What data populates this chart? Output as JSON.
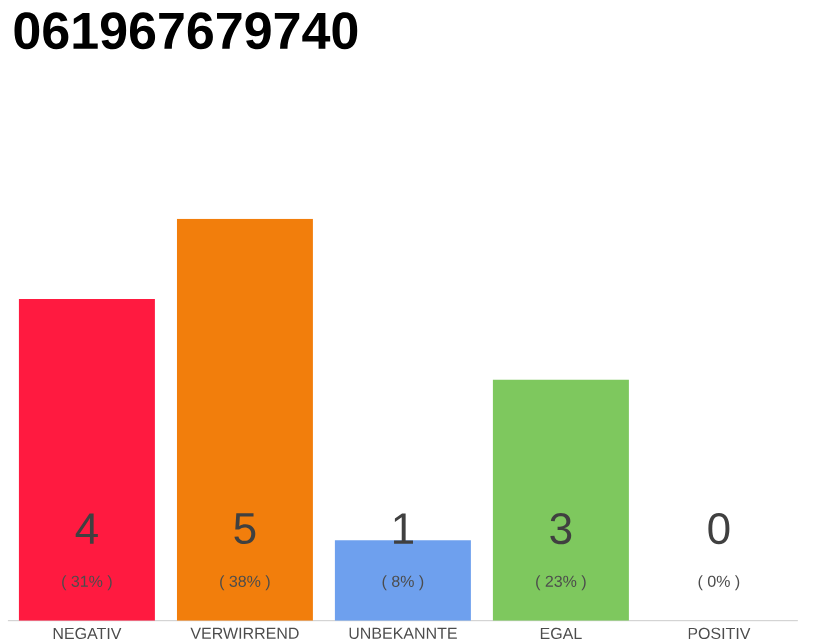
{
  "chart_data": {
    "type": "bar",
    "title": "061967679740",
    "categories": [
      "NEGATIV",
      "VERWIRREND",
      "UNBEKANNTE",
      "EGAL",
      "POSITIV"
    ],
    "values": [
      4,
      5,
      1,
      3,
      0
    ],
    "colors": [
      "#ff1a40",
      "#f27e0c",
      "#6ea0ee",
      "#7ec85e",
      "#d9d9d9"
    ],
    "annotations": [
      "( 31% )",
      "( 38% )",
      "( 8% )",
      "( 23% )",
      "( 0% )"
    ],
    "data_labels": true,
    "tick_labels": "x"
  }
}
